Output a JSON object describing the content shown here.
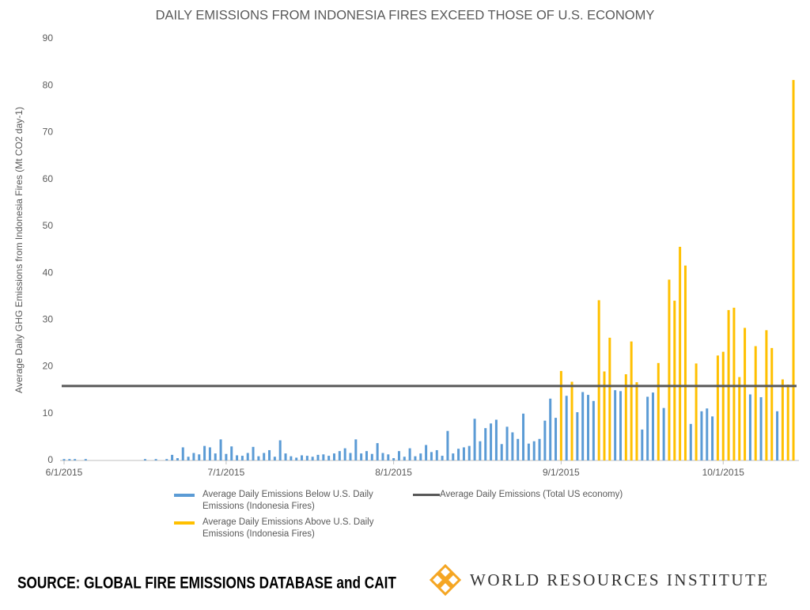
{
  "chart_data": {
    "type": "bar",
    "title": "DAILY EMISSIONS FROM INDONESIA FIRES EXCEED THOSE OF U.S. ECONOMY",
    "y_label": "Average Daily GHG Emissions from Indonesia Fires (Mt CO2 day-1)",
    "categories": [
      "6/1/2015",
      null,
      null,
      null,
      null,
      null,
      null,
      null,
      null,
      null,
      null,
      null,
      null,
      null,
      null,
      null,
      null,
      null,
      null,
      null,
      null,
      null,
      null,
      null,
      null,
      null,
      null,
      null,
      null,
      null,
      "7/1/2015",
      null,
      null,
      null,
      null,
      null,
      null,
      null,
      null,
      null,
      null,
      null,
      null,
      null,
      null,
      null,
      null,
      null,
      null,
      null,
      null,
      null,
      null,
      null,
      null,
      null,
      null,
      null,
      null,
      null,
      null,
      "8/1/2015",
      null,
      null,
      null,
      null,
      null,
      null,
      null,
      null,
      null,
      null,
      null,
      null,
      null,
      null,
      null,
      null,
      null,
      null,
      null,
      null,
      null,
      null,
      null,
      null,
      null,
      null,
      null,
      null,
      null,
      null,
      "9/1/2015",
      null,
      null,
      null,
      null,
      null,
      null,
      null,
      null,
      null,
      null,
      null,
      null,
      null,
      null,
      null,
      null,
      null,
      null,
      null,
      null,
      null,
      null,
      null,
      null,
      null,
      null,
      null,
      null,
      null,
      "10/1/2015",
      null,
      null,
      null,
      null,
      null,
      null,
      null,
      null,
      null,
      null,
      null,
      null,
      null
    ],
    "series": [
      {
        "name": "Average Daily Emissions Below U.S. Daily Emissions (Indonesia Fires)",
        "color": "#5b9bd5",
        "values": [
          0.3,
          0.3,
          0.3,
          0,
          0.3,
          0,
          0,
          0,
          0,
          0,
          0,
          0,
          0,
          0,
          0,
          0.3,
          0,
          0.3,
          0,
          0.3,
          1.2,
          0.5,
          2.8,
          0.8,
          1.6,
          1.3,
          3.1,
          2.8,
          1.5,
          4.5,
          1.4,
          3.0,
          1.1,
          1.0,
          1.6,
          2.9,
          0.9,
          1.6,
          2.2,
          0.8,
          4.3,
          1.5,
          0.9,
          0.6,
          1.1,
          1.0,
          0.8,
          1.2,
          1.3,
          1.0,
          1.5,
          2.0,
          2.6,
          1.6,
          4.5,
          1.5,
          2.0,
          1.4,
          3.7,
          1.6,
          1.3,
          0.5,
          2.0,
          0.8,
          2.6,
          0.9,
          1.5,
          3.3,
          1.8,
          2.2,
          1.0,
          6.3,
          1.5,
          2.5,
          2.8,
          3.1,
          8.9,
          4.1,
          6.9,
          7.9,
          8.7,
          3.5,
          7.2,
          6.0,
          4.6,
          10.0,
          3.6,
          4.1,
          4.6,
          8.5,
          13.2,
          9.1,
          null,
          13.8,
          null,
          10.3,
          14.6,
          14.0,
          12.7,
          null,
          null,
          null,
          15.0,
          14.8,
          null,
          null,
          null,
          6.6,
          13.6,
          14.5,
          null,
          11.2,
          null,
          null,
          null,
          null,
          7.8,
          null,
          10.5,
          11.1,
          9.4,
          null,
          null,
          null,
          null,
          null,
          null,
          14.1,
          null,
          13.5,
          null,
          null,
          10.5,
          null,
          null,
          null
        ]
      },
      {
        "name": "Average Daily Emissions Above U.S. Daily Emissions (Indonesia Fires)",
        "color": "#ffc000",
        "values": [
          null,
          null,
          null,
          null,
          null,
          null,
          null,
          null,
          null,
          null,
          null,
          null,
          null,
          null,
          null,
          null,
          null,
          null,
          null,
          null,
          null,
          null,
          null,
          null,
          null,
          null,
          null,
          null,
          null,
          null,
          null,
          null,
          null,
          null,
          null,
          null,
          null,
          null,
          null,
          null,
          null,
          null,
          null,
          null,
          null,
          null,
          null,
          null,
          null,
          null,
          null,
          null,
          null,
          null,
          null,
          null,
          null,
          null,
          null,
          null,
          null,
          null,
          null,
          null,
          null,
          null,
          null,
          null,
          null,
          null,
          null,
          null,
          null,
          null,
          null,
          null,
          null,
          null,
          null,
          null,
          null,
          null,
          null,
          null,
          null,
          null,
          null,
          null,
          null,
          null,
          null,
          null,
          19.1,
          null,
          16.8,
          null,
          null,
          null,
          null,
          34.2,
          19.0,
          26.2,
          null,
          null,
          18.4,
          25.4,
          16.7,
          null,
          null,
          null,
          20.8,
          null,
          38.6,
          34.1,
          45.6,
          41.6,
          null,
          20.7,
          null,
          null,
          null,
          22.4,
          23.2,
          32.1,
          32.6,
          17.8,
          28.3,
          null,
          24.4,
          null,
          27.8,
          24.0,
          null,
          17.3,
          16.2,
          81.2
        ]
      }
    ],
    "reference_line": {
      "name": "Average Daily Emissions (Total US economy)",
      "value": 15.9,
      "color": "#595959"
    },
    "ylim": [
      0,
      90
    ],
    "yticks": [
      0,
      10,
      20,
      30,
      40,
      50,
      60,
      70,
      80,
      90
    ],
    "grid": false
  },
  "footer": {
    "source": "SOURCE: GLOBAL FIRE EMISSIONS DATABASE and CAIT",
    "organization": "WORLD RESOURCES INSTITUTE"
  }
}
